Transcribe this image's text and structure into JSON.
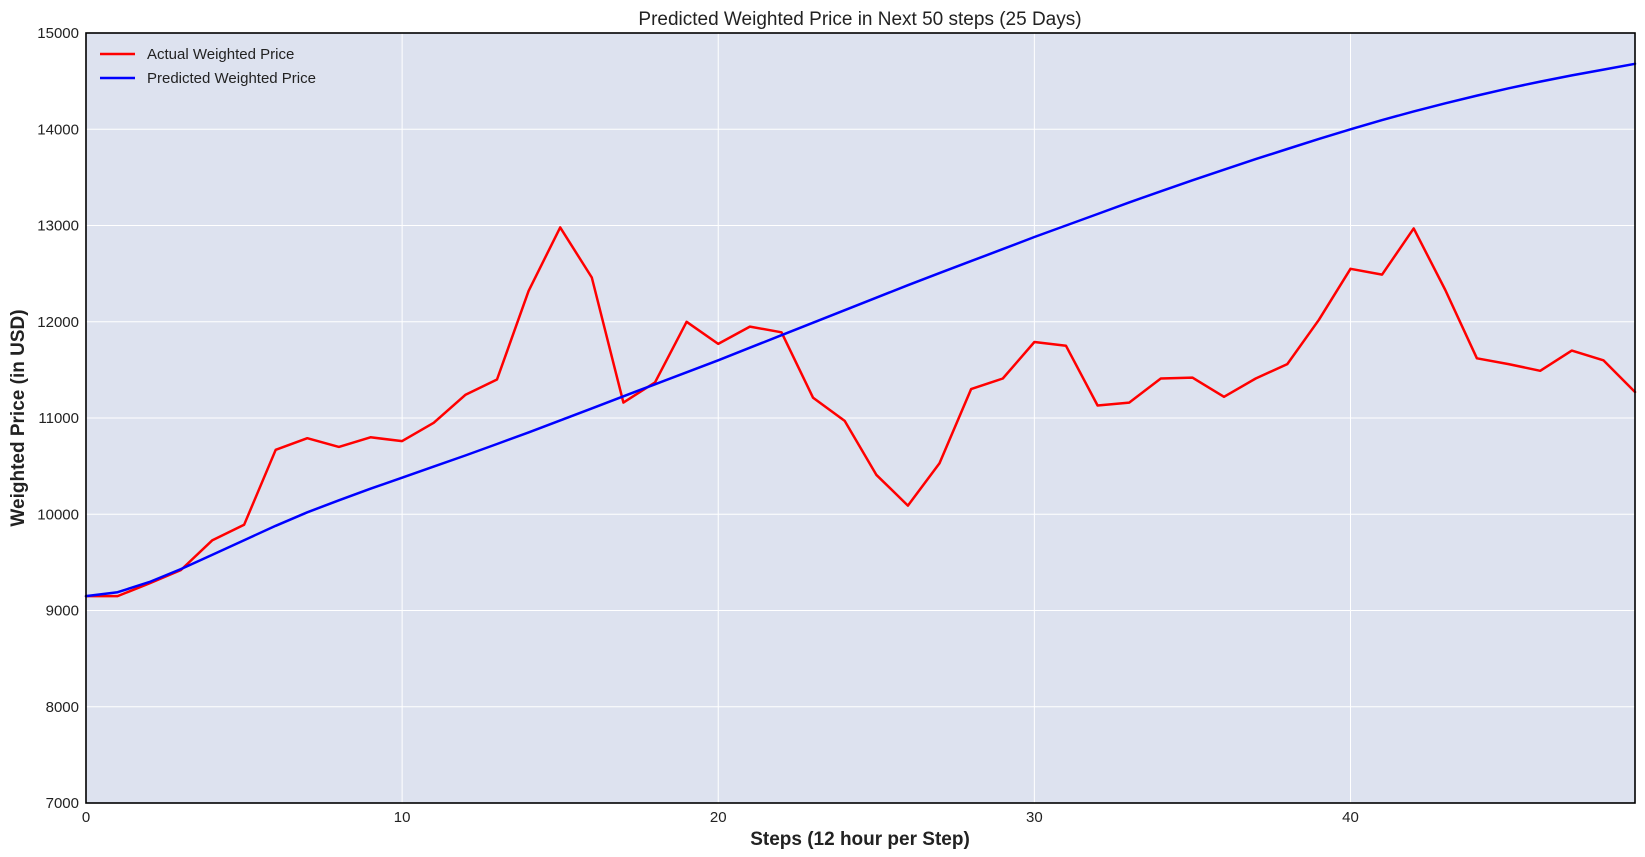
{
  "chart_data": {
    "type": "line",
    "title": "Predicted Weighted Price in Next 50 steps (25 Days)",
    "xlabel": "Steps (12 hour per Step)",
    "ylabel": "Weighted Price (in USD)",
    "xlim": [
      0,
      49
    ],
    "ylim": [
      7000,
      15000
    ],
    "xticks": [
      0,
      10,
      20,
      30,
      40
    ],
    "yticks": [
      7000,
      8000,
      9000,
      10000,
      11000,
      12000,
      13000,
      14000,
      15000
    ],
    "grid": true,
    "legend_position": "top-left",
    "background_color": "#dde2ef",
    "series": [
      {
        "name": "Actual Weighted Price",
        "color": "#ff0000",
        "values": [
          9150,
          9150,
          9280,
          9420,
          9730,
          9890,
          10670,
          10790,
          10700,
          10800,
          10760,
          10950,
          11240,
          11400,
          12320,
          12980,
          12460,
          11160,
          11370,
          12000,
          11770,
          11950,
          11890,
          11210,
          10970,
          10410,
          10090,
          10530,
          11300,
          11410,
          11790,
          11750,
          11130,
          11160,
          11410,
          11420,
          11220,
          11410,
          11560,
          12020,
          12550,
          12490,
          12970,
          12330,
          11620,
          11560,
          11490,
          11700,
          11600,
          11270
        ]
      },
      {
        "name": "Predicted Weighted Price",
        "color": "#0000ff",
        "values": [
          9150,
          9190,
          9295,
          9430,
          9580,
          9730,
          9880,
          10020,
          10145,
          10265,
          10380,
          10495,
          10610,
          10730,
          10850,
          10975,
          11100,
          11225,
          11350,
          11475,
          11600,
          11730,
          11860,
          11990,
          12120,
          12250,
          12380,
          12505,
          12630,
          12755,
          12880,
          13000,
          13120,
          13240,
          13355,
          13470,
          13580,
          13690,
          13795,
          13900,
          14000,
          14095,
          14185,
          14270,
          14350,
          14425,
          14495,
          14560,
          14620,
          14680
        ]
      }
    ]
  }
}
